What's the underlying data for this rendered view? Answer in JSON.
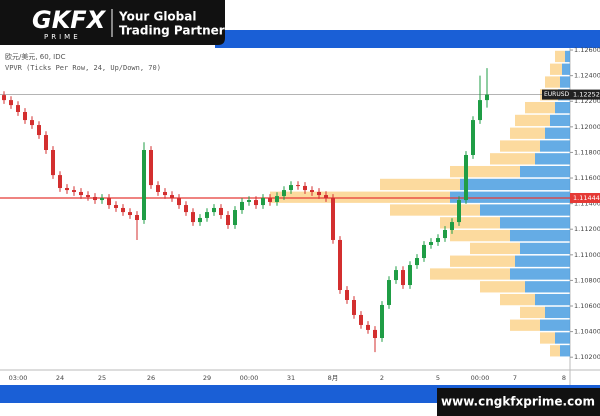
{
  "header": {
    "logo": "GKFX",
    "logo_sub": "PRIME",
    "tagline_1": "Your Global",
    "tagline_2": "Trading Partner"
  },
  "footer": {
    "url": "www.cngkfxprime.com"
  },
  "chart_data": {
    "type": "candlestick",
    "title": "欧元/美元, 60, IDC",
    "subtitle": "VPVR (Ticks Per Row, 24, Up/Down, 70)",
    "up_color": "#1f9d45",
    "down_color": "#d32f2f",
    "categories": [
      null,
      null,
      "03:00",
      null,
      null,
      null,
      null,
      null,
      "24",
      null,
      null,
      null,
      null,
      null,
      "25",
      null,
      null,
      null,
      null,
      null,
      null,
      "26",
      null,
      null,
      null,
      null,
      null,
      null,
      null,
      "29",
      null,
      null,
      null,
      null,
      null,
      "00:00",
      null,
      null,
      null,
      null,
      null,
      "31",
      null,
      null,
      null,
      null,
      null,
      "8月",
      null,
      null,
      null,
      null,
      null,
      null,
      "2",
      null,
      null,
      null,
      null,
      null,
      null,
      null,
      "5",
      null,
      null,
      null,
      null,
      null,
      "00:00",
      null,
      null,
      null,
      null,
      "7",
      null,
      null,
      null,
      null,
      null,
      null,
      "8"
    ],
    "open": [
      1.12248,
      1.12209,
      1.1217,
      1.12116,
      1.12053,
      1.12014,
      1.11936,
      1.11819,
      1.11623,
      1.11522,
      1.11506,
      1.11491,
      1.11467,
      1.11452,
      1.11428,
      1.11444,
      1.11389,
      1.11366,
      1.11334,
      1.11311,
      1.11272,
      1.11819,
      1.11545,
      1.11491,
      1.11467,
      1.11444,
      1.11389,
      1.11334,
      1.11256,
      1.11288,
      1.11334,
      1.11366,
      1.11311,
      1.11233,
      1.1135,
      1.11413,
      1.11428,
      1.11389,
      1.11444,
      1.11413,
      1.11459,
      1.11506,
      1.11545,
      1.11538,
      1.11506,
      1.11491,
      1.11467,
      1.11444,
      1.11116,
      1.10725,
      1.10647,
      1.1053,
      1.10452,
      1.10413,
      1.1035,
      1.10608,
      1.10803,
      1.10881,
      1.10764,
      1.1092,
      1.10975,
      1.11077,
      1.111,
      1.11131,
      1.11194,
      1.11256,
      1.11428,
      1.1178,
      1.12053,
      1.12209,
      null,
      null,
      null,
      null,
      null,
      null,
      null,
      null,
      null,
      null,
      null
    ],
    "high": [
      1.12278,
      1.12239,
      1.122,
      1.12146,
      1.12083,
      1.12044,
      1.11966,
      1.11849,
      1.11653,
      1.11552,
      1.11536,
      1.11521,
      1.11497,
      1.11482,
      1.11474,
      1.11474,
      1.11419,
      1.11396,
      1.11364,
      1.11341,
      1.1188,
      1.11849,
      1.11575,
      1.11521,
      1.11497,
      1.11474,
      1.11419,
      1.11364,
      1.11318,
      1.11364,
      1.11396,
      1.11396,
      1.11341,
      1.1138,
      1.11443,
      1.11458,
      1.11458,
      1.11474,
      1.11474,
      1.11489,
      1.11536,
      1.11575,
      1.11575,
      1.11568,
      1.11536,
      1.11521,
      1.11497,
      1.11474,
      1.11146,
      1.10755,
      1.10677,
      1.1056,
      1.10482,
      1.10443,
      1.10638,
      1.10833,
      1.10911,
      1.10911,
      1.1095,
      1.11005,
      1.11107,
      1.1113,
      1.11161,
      1.11224,
      1.11286,
      1.11458,
      1.1181,
      1.12083,
      1.124,
      1.12459,
      null,
      null,
      null,
      null,
      null,
      null,
      null,
      null,
      null,
      null,
      null
    ],
    "low": [
      1.12179,
      1.1214,
      1.12086,
      1.12023,
      1.11984,
      1.11906,
      1.11789,
      1.11593,
      1.11492,
      1.11476,
      1.11461,
      1.11437,
      1.11422,
      1.11398,
      1.11398,
      1.11359,
      1.11336,
      1.11304,
      1.11281,
      1.11116,
      1.11242,
      1.11515,
      1.11461,
      1.11437,
      1.11414,
      1.11359,
      1.11304,
      1.11226,
      1.11226,
      1.11258,
      1.11304,
      1.11281,
      1.11203,
      1.11203,
      1.1132,
      1.11383,
      1.11359,
      1.11359,
      1.11383,
      1.11383,
      1.11429,
      1.11476,
      1.11508,
      1.11476,
      1.11461,
      1.11437,
      1.11414,
      1.11086,
      1.10695,
      1.10617,
      1.105,
      1.10422,
      1.10383,
      1.1024,
      1.1032,
      1.10578,
      1.10773,
      1.10734,
      1.10734,
      1.1089,
      1.10945,
      1.11047,
      1.1107,
      1.11101,
      1.11164,
      1.11226,
      1.11398,
      1.1175,
      1.12023,
      1.1215,
      null,
      null,
      null,
      null,
      null,
      null,
      null,
      null,
      null,
      null,
      null
    ],
    "close": [
      1.12209,
      1.1217,
      1.12116,
      1.12053,
      1.12014,
      1.11936,
      1.11819,
      1.11623,
      1.11522,
      1.11506,
      1.11491,
      1.11467,
      1.11452,
      1.11428,
      1.11444,
      1.11389,
      1.11366,
      1.11334,
      1.11311,
      1.11272,
      1.11819,
      1.11545,
      1.11491,
      1.11467,
      1.11444,
      1.11389,
      1.11334,
      1.11256,
      1.11288,
      1.11334,
      1.11366,
      1.11311,
      1.11233,
      1.1135,
      1.11413,
      1.11428,
      1.11389,
      1.11444,
      1.11413,
      1.11459,
      1.11506,
      1.11545,
      1.11538,
      1.11506,
      1.11491,
      1.11467,
      1.11444,
      1.11116,
      1.10725,
      1.10647,
      1.1053,
      1.10452,
      1.10413,
      1.1035,
      1.10608,
      1.10803,
      1.10881,
      1.10764,
      1.1092,
      1.10975,
      1.11077,
      1.111,
      1.11131,
      1.11194,
      1.11256,
      1.11428,
      1.1178,
      1.12053,
      1.12209,
      1.12252,
      null,
      null,
      null,
      null,
      null,
      null,
      null,
      null,
      null,
      null,
      null
    ],
    "ylim": [
      1.101,
      1.12616
    ],
    "yticks": [
      {
        "value": 1.126,
        "label": "1.12600"
      },
      {
        "value": 1.124,
        "label": "1.12400"
      },
      {
        "value": 1.122,
        "label": "1.12200"
      },
      {
        "value": 1.12,
        "label": "1.12000"
      },
      {
        "value": 1.118,
        "label": "1.11800"
      },
      {
        "value": 1.116,
        "label": "1.11600"
      },
      {
        "value": 1.114,
        "label": "1.11400"
      },
      {
        "value": 1.112,
        "label": "1.11200"
      },
      {
        "value": 1.11,
        "label": "1.11000"
      },
      {
        "value": 1.108,
        "label": "1.10800"
      },
      {
        "value": 1.106,
        "label": "1.10600"
      },
      {
        "value": 1.104,
        "label": "1.10400"
      },
      {
        "value": 1.102,
        "label": "1.10200"
      }
    ],
    "last_price": {
      "symbol": "EURUSD",
      "value": 1.12252,
      "label": "1.12252"
    },
    "reference_line": {
      "value": 1.11444,
      "label": "1.11444",
      "color": "#e53935"
    },
    "volume_profile": {
      "up_color": "#4a9ee0",
      "down_color": "#fbd38d",
      "levels": [
        1.1255,
        1.1245,
        1.1235,
        1.1225,
        1.1215,
        1.1205,
        1.1195,
        1.1185,
        1.1175,
        1.1165,
        1.1155,
        1.1145,
        1.1135,
        1.1125,
        1.1115,
        1.1105,
        1.1095,
        1.1085,
        1.1075,
        1.1065,
        1.1055,
        1.1045,
        1.1035,
        1.1025
      ],
      "up": [
        5,
        8,
        10,
        12,
        15,
        20,
        25,
        30,
        35,
        50,
        110,
        120,
        90,
        70,
        60,
        50,
        55,
        60,
        45,
        35,
        25,
        30,
        15,
        10
      ],
      "down": [
        10,
        12,
        15,
        18,
        30,
        35,
        35,
        40,
        45,
        70,
        80,
        180,
        90,
        60,
        60,
        50,
        65,
        80,
        45,
        35,
        25,
        30,
        15,
        10
      ]
    }
  }
}
